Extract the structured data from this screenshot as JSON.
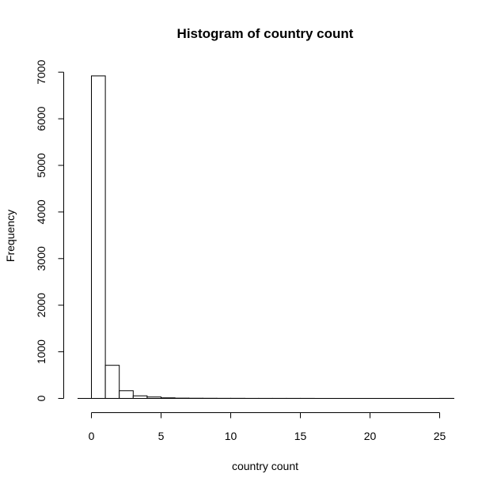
{
  "chart_data": {
    "type": "bar",
    "title": "Histogram of country count",
    "xlabel": "country count",
    "ylabel": "Frequency",
    "xlim": [
      0,
      26
    ],
    "ylim": [
      0,
      7000
    ],
    "x_ticks": [
      0,
      5,
      10,
      15,
      20,
      25
    ],
    "y_ticks": [
      0,
      1000,
      2000,
      3000,
      4000,
      5000,
      6000,
      7000
    ],
    "bin_width": 1,
    "bins": [
      {
        "x0": 0,
        "x1": 1,
        "count": 6920
      },
      {
        "x0": 1,
        "x1": 2,
        "count": 710
      },
      {
        "x0": 2,
        "x1": 3,
        "count": 165
      },
      {
        "x0": 3,
        "x1": 4,
        "count": 55
      },
      {
        "x0": 4,
        "x1": 5,
        "count": 30
      },
      {
        "x0": 5,
        "x1": 6,
        "count": 12
      },
      {
        "x0": 6,
        "x1": 7,
        "count": 6
      },
      {
        "x0": 7,
        "x1": 8,
        "count": 4
      },
      {
        "x0": 8,
        "x1": 9,
        "count": 3
      },
      {
        "x0": 9,
        "x1": 10,
        "count": 2
      },
      {
        "x0": 10,
        "x1": 11,
        "count": 2
      },
      {
        "x0": 11,
        "x1": 12,
        "count": 1
      },
      {
        "x0": 12,
        "x1": 13,
        "count": 1
      },
      {
        "x0": 13,
        "x1": 14,
        "count": 1
      },
      {
        "x0": 14,
        "x1": 15,
        "count": 1
      },
      {
        "x0": 15,
        "x1": 16,
        "count": 1
      },
      {
        "x0": 16,
        "x1": 17,
        "count": 0
      },
      {
        "x0": 17,
        "x1": 18,
        "count": 0
      },
      {
        "x0": 18,
        "x1": 19,
        "count": 0
      },
      {
        "x0": 19,
        "x1": 20,
        "count": 0
      },
      {
        "x0": 20,
        "x1": 21,
        "count": 0
      },
      {
        "x0": 21,
        "x1": 22,
        "count": 0
      },
      {
        "x0": 22,
        "x1": 23,
        "count": 0
      },
      {
        "x0": 23,
        "x1": 24,
        "count": 0
      },
      {
        "x0": 24,
        "x1": 25,
        "count": 0
      },
      {
        "x0": 25,
        "x1": 26,
        "count": 1
      }
    ],
    "grid": false,
    "colors": {
      "bar_fill": "#ffffff",
      "bar_stroke": "#000000"
    }
  }
}
